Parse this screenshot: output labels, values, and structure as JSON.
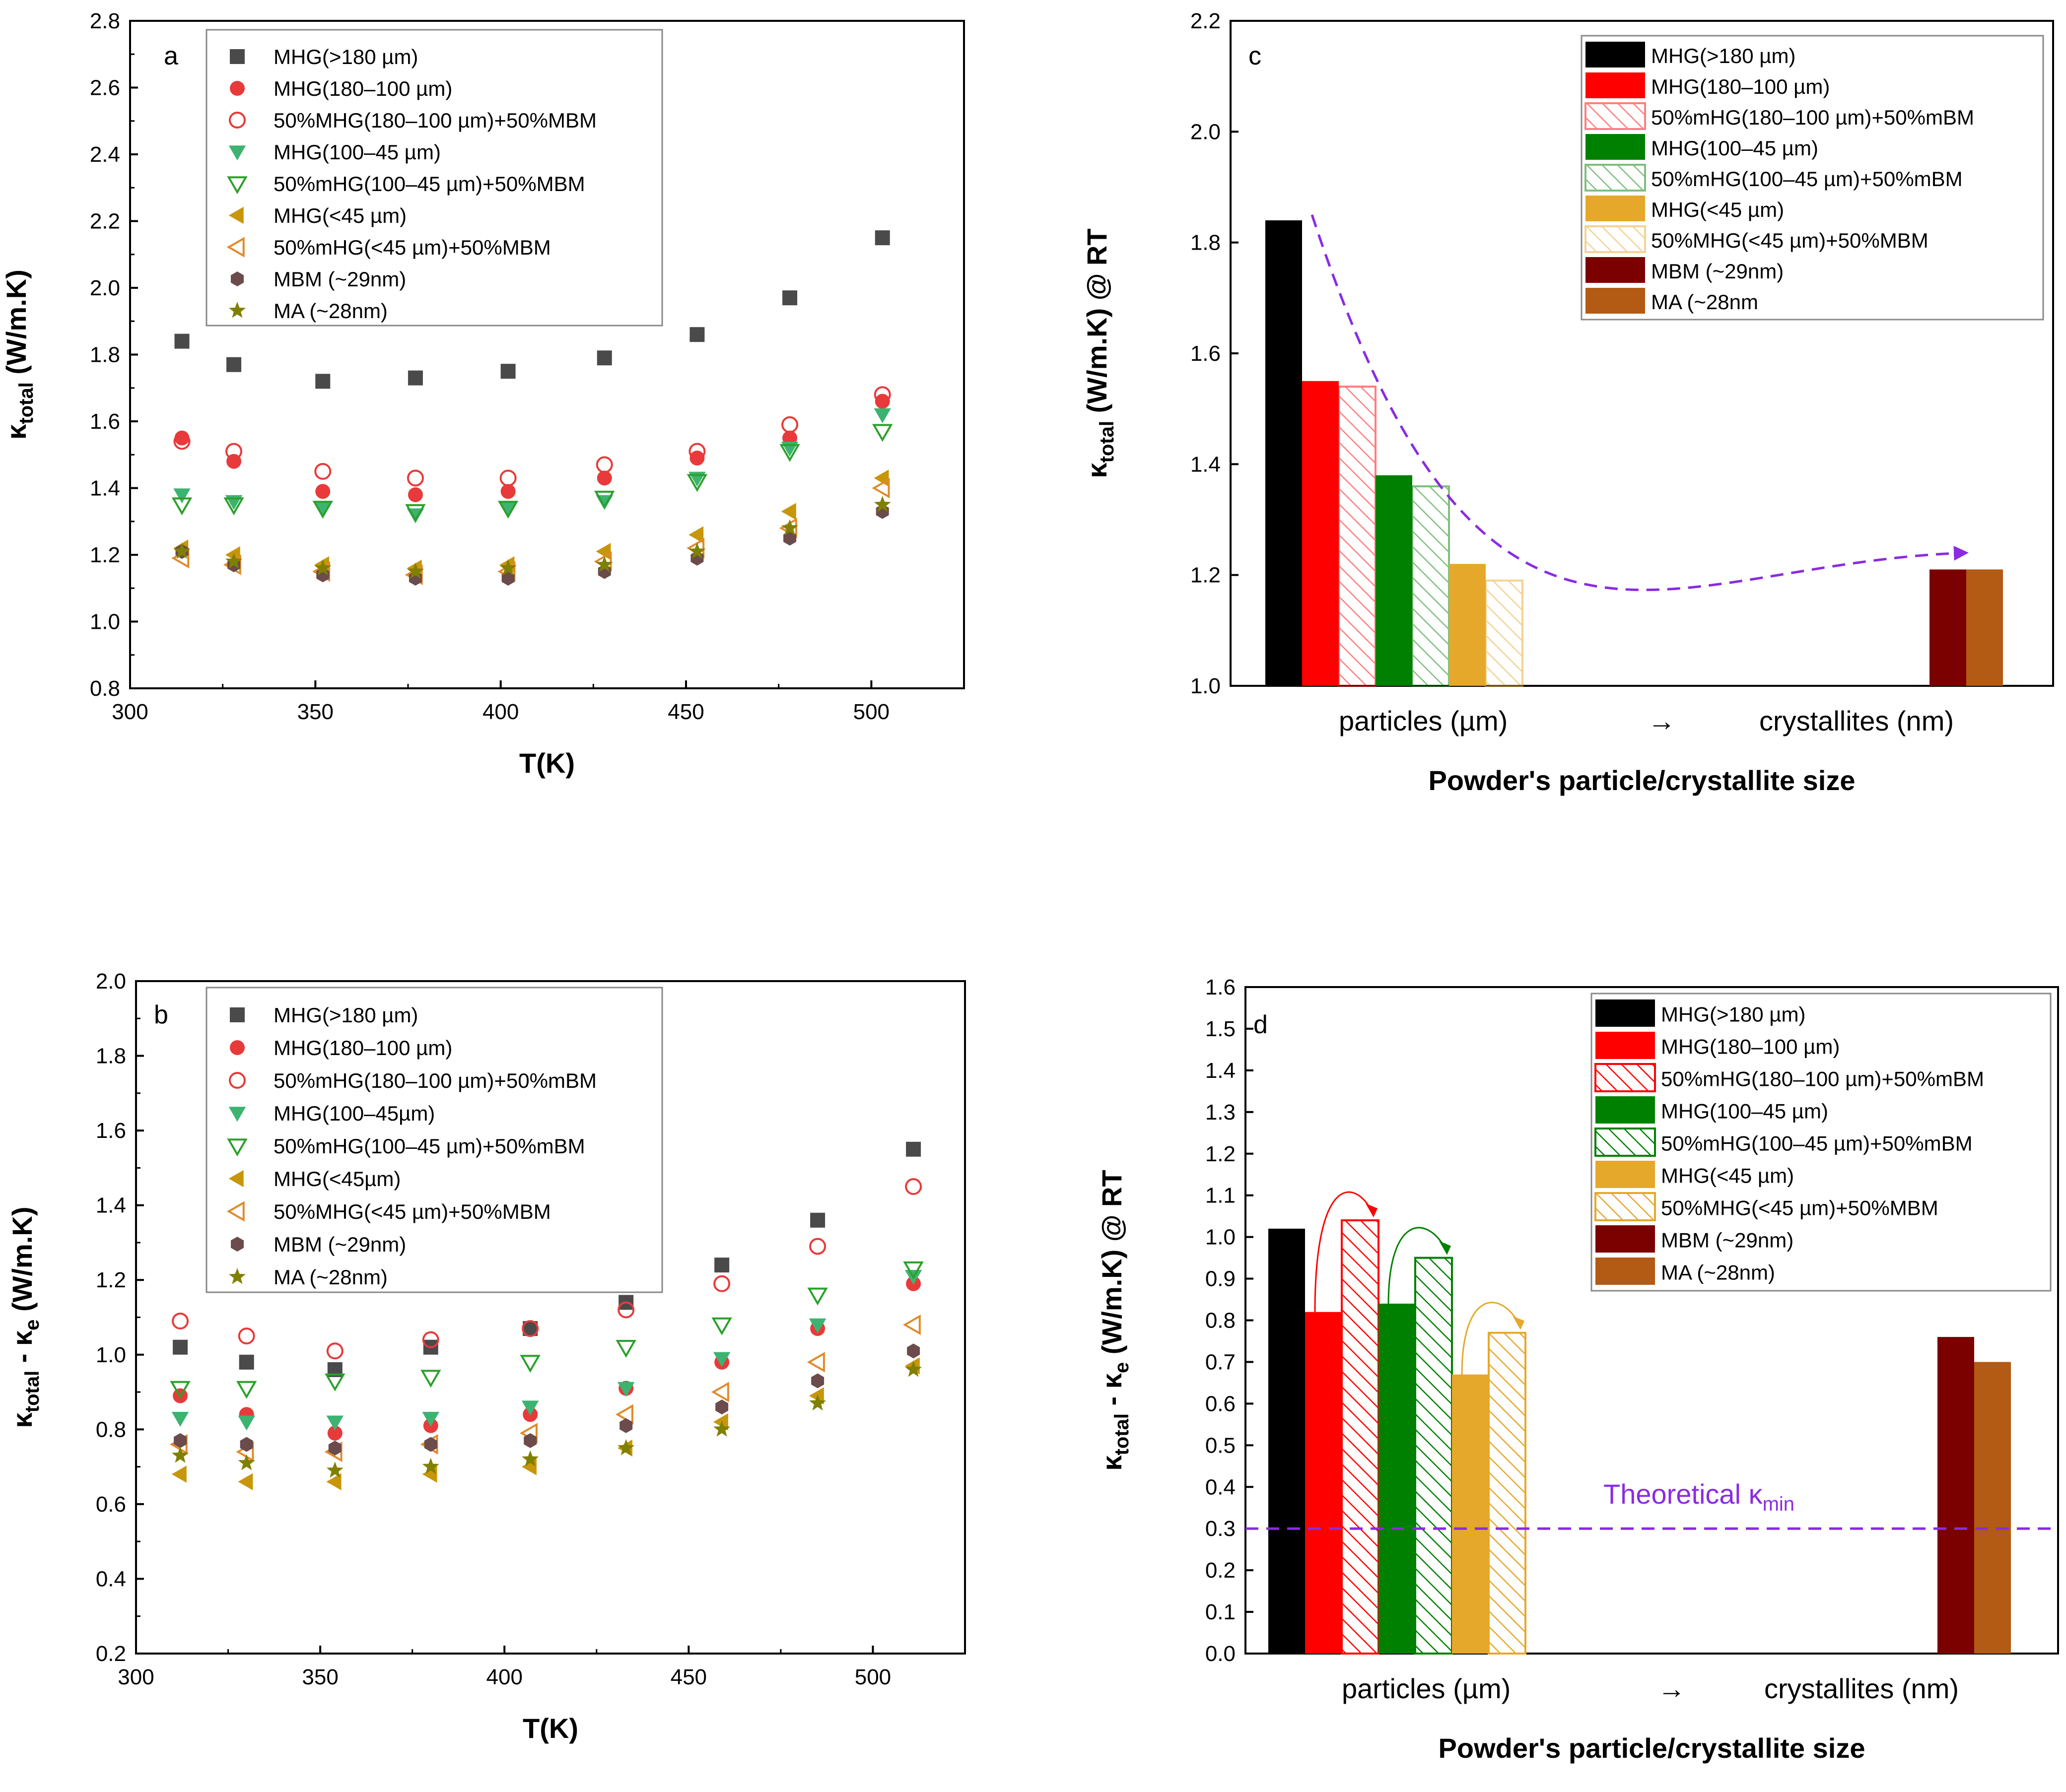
{
  "colors": {
    "black": "#000000",
    "red": "#ff0000",
    "green": "#008000",
    "markerGreen": "#3cb371",
    "gold": "#e6a82a",
    "darkgold": "#c8960a",
    "darkred": "#7b0000",
    "brown": "#b35a14",
    "maroon": "#6b4b4b",
    "olive": "#808000",
    "gray": "#4a4a4a",
    "purple": "#8a2be2"
  },
  "chart_data": [
    {
      "type": "scatter",
      "panel_label": "a",
      "xlabel": "T(K)",
      "ylabel_main": "κ",
      "ylabel_sub": "total",
      "ylabel_tail": " (W/m.K)",
      "xlim": [
        300,
        525
      ],
      "ylim": [
        0.8,
        2.8
      ],
      "xticks": [
        300,
        350,
        400,
        450,
        500
      ],
      "yticks": [
        0.8,
        1.0,
        1.2,
        1.4,
        1.6,
        1.8,
        2.0,
        2.2,
        2.4,
        2.6,
        2.8
      ],
      "ytick_labels": [
        "0.8",
        "1.0",
        "1.2",
        "1.4",
        "1.6",
        "1.8",
        "2.0",
        "2.2",
        "2.4",
        "2.6",
        "2.8"
      ],
      "x": [
        314,
        328,
        352,
        377,
        402,
        428,
        453,
        478,
        503
      ],
      "series": [
        {
          "name": "MHG(>180 µm)",
          "marker": "square",
          "color": "#4a4a4a",
          "values": [
            1.84,
            1.77,
            1.72,
            1.73,
            1.75,
            1.79,
            1.86,
            1.97,
            2.15
          ]
        },
        {
          "name": "MHG(180–100 µm)",
          "marker": "circle",
          "color": "#e83a3a",
          "values": [
            1.55,
            1.48,
            1.39,
            1.38,
            1.39,
            1.43,
            1.49,
            1.55,
            1.66
          ]
        },
        {
          "name": "50%MHG(180–100 µm)+50%MBM",
          "marker": "circle-open",
          "color": "#e83a3a",
          "values": [
            1.54,
            1.51,
            1.45,
            1.43,
            1.43,
            1.47,
            1.51,
            1.59,
            1.68
          ]
        },
        {
          "name": "MHG(100–45 µm)",
          "marker": "tri-down",
          "color": "#3cb371",
          "values": [
            1.38,
            1.36,
            1.34,
            1.32,
            1.34,
            1.36,
            1.43,
            1.52,
            1.62
          ]
        },
        {
          "name": "50%mHG(100–45 µm)+50%MBM",
          "marker": "tri-down-open",
          "color": "#2ca02c",
          "values": [
            1.35,
            1.35,
            1.34,
            1.33,
            1.34,
            1.37,
            1.42,
            1.51,
            1.57
          ]
        },
        {
          "name": "MHG(<45 µm)",
          "marker": "tri-left",
          "color": "#c8960a",
          "values": [
            1.22,
            1.2,
            1.17,
            1.16,
            1.17,
            1.21,
            1.26,
            1.33,
            1.43
          ]
        },
        {
          "name": "50%mHG(<45 µm)+50%MBM",
          "marker": "tri-left-open",
          "color": "#e08a2a",
          "values": [
            1.19,
            1.17,
            1.15,
            1.14,
            1.15,
            1.18,
            1.22,
            1.28,
            1.4
          ]
        },
        {
          "name": "MBM (~29nm)",
          "marker": "hexagon",
          "color": "#6b4b4b",
          "values": [
            1.21,
            1.17,
            1.14,
            1.13,
            1.13,
            1.15,
            1.19,
            1.25,
            1.33
          ]
        },
        {
          "name": "MA (~28nm)",
          "marker": "star",
          "color": "#808000",
          "values": [
            1.21,
            1.18,
            1.16,
            1.15,
            1.16,
            1.17,
            1.21,
            1.28,
            1.35
          ]
        }
      ]
    },
    {
      "type": "scatter",
      "panel_label": "b",
      "xlabel": "T(K)",
      "ylabel_main": "κ",
      "ylabel_sub": "total",
      "ylabel_mid": " - κ",
      "ylabel_sub2": "e",
      "ylabel_tail": " (W/m.K)",
      "xlim": [
        300,
        525
      ],
      "ylim": [
        0.2,
        2.0
      ],
      "xticks": [
        300,
        350,
        400,
        450,
        500
      ],
      "yticks": [
        0.2,
        0.4,
        0.6,
        0.8,
        1.0,
        1.2,
        1.4,
        1.6,
        1.8,
        2.0
      ],
      "ytick_labels": [
        "0.2",
        "0.4",
        "0.6",
        "0.8",
        "1.0",
        "1.2",
        "1.4",
        "1.6",
        "1.8",
        "2.0"
      ],
      "x": [
        312,
        330,
        354,
        380,
        407,
        433,
        459,
        485,
        511
      ],
      "series": [
        {
          "name": "MHG(>180 µm)",
          "marker": "square",
          "color": "#4a4a4a",
          "values": [
            1.02,
            0.98,
            0.96,
            1.02,
            1.07,
            1.14,
            1.24,
            1.36,
            1.55
          ]
        },
        {
          "name": "MHG(180–100 µm)",
          "marker": "circle",
          "color": "#e83a3a",
          "values": [
            0.89,
            0.84,
            0.79,
            0.81,
            0.84,
            0.91,
            0.98,
            1.07,
            1.19
          ]
        },
        {
          "name": "50%mHG(180–100 µm)+50%mBM",
          "marker": "circle-open",
          "color": "#e83a3a",
          "values": [
            1.09,
            1.05,
            1.01,
            1.04,
            1.07,
            1.12,
            1.19,
            1.29,
            1.45
          ]
        },
        {
          "name": "MHG(100–45µm)",
          "marker": "tri-down",
          "color": "#3cb371",
          "values": [
            0.83,
            0.82,
            0.82,
            0.83,
            0.86,
            0.91,
            0.99,
            1.08,
            1.21
          ]
        },
        {
          "name": "50%mHG(100–45 µm)+50%mBM",
          "marker": "tri-down-open",
          "color": "#2ca02c",
          "values": [
            0.91,
            0.91,
            0.93,
            0.94,
            0.98,
            1.02,
            1.08,
            1.16,
            1.23
          ]
        },
        {
          "name": "MHG(<45µm)",
          "marker": "tri-left",
          "color": "#c8960a",
          "values": [
            0.68,
            0.66,
            0.66,
            0.68,
            0.7,
            0.75,
            0.82,
            0.89,
            0.97
          ]
        },
        {
          "name": "50%MHG(<45 µm)+50%MBM",
          "marker": "tri-left-open",
          "color": "#e08a2a",
          "values": [
            0.76,
            0.74,
            0.74,
            0.76,
            0.79,
            0.84,
            0.9,
            0.98,
            1.08
          ]
        },
        {
          "name": "MBM (~29nm)",
          "marker": "hexagon",
          "color": "#6b4b4b",
          "values": [
            0.77,
            0.76,
            0.75,
            0.76,
            0.77,
            0.81,
            0.86,
            0.93,
            1.01
          ]
        },
        {
          "name": "MA (~28nm)",
          "marker": "star",
          "color": "#808000",
          "values": [
            0.73,
            0.71,
            0.69,
            0.7,
            0.72,
            0.75,
            0.8,
            0.87,
            0.96
          ]
        }
      ]
    },
    {
      "type": "bar",
      "panel_label": "c",
      "title": "",
      "xlabel": "Powder's particle/crystallite size",
      "xcat_left": "particles (µm)",
      "xcat_arrow": "→",
      "xcat_right": "crystallites (nm)",
      "ylabel_main": "κ",
      "ylabel_sub": "total",
      "ylabel_tail": " (W/m.K) @ RT",
      "ylim": [
        1.0,
        2.2
      ],
      "yticks": [
        1.0,
        1.2,
        1.4,
        1.6,
        1.8,
        2.0,
        2.2
      ],
      "ytick_labels": [
        "1.0",
        "1.2",
        "1.4",
        "1.6",
        "1.8",
        "2.0",
        "2.2"
      ],
      "categories": [
        "MHG(>180 µm)",
        "MHG(180–100 µm)",
        "50%mHG(180–100 µm)+50%mBM",
        "MHG(100–45 µm)",
        "50%mHG(100–45 µm)+50%mBM",
        "MHG(<45 µm)",
        "50%MHG(<45 µm)+50%MBM",
        "MBM (~29nm)",
        "MA (~28nm"
      ],
      "values": [
        1.84,
        1.55,
        1.54,
        1.38,
        1.36,
        1.22,
        1.19,
        1.21,
        1.21
      ],
      "bar_colors": [
        "#000000",
        "#ff0000",
        "#ff0000",
        "#008000",
        "#008000",
        "#e6a82a",
        "#e6a82a",
        "#7b0000",
        "#b35a14"
      ],
      "hatched": [
        false,
        false,
        true,
        false,
        true,
        false,
        true,
        false,
        false
      ],
      "hatch_opacity": 0.5,
      "trend": {
        "from_value": 1.85,
        "to_value": 1.24,
        "color": "#8a2be2"
      }
    },
    {
      "type": "bar",
      "panel_label": "d",
      "xlabel": "Powder's particle/crystallite size",
      "xcat_left": "particles (µm)",
      "xcat_arrow": "→",
      "xcat_right": "crystallites (nm)",
      "ylabel_main": "κ",
      "ylabel_sub": "total",
      "ylabel_mid": " - κ",
      "ylabel_sub2": "e",
      "ylabel_tail": " (W/m.K) @ RT",
      "ylim": [
        0.0,
        1.6
      ],
      "yticks": [
        0.0,
        0.1,
        0.2,
        0.3,
        0.4,
        0.5,
        0.6,
        0.7,
        0.8,
        0.9,
        1.0,
        1.1,
        1.2,
        1.3,
        1.4,
        1.5,
        1.6
      ],
      "ytick_labels": [
        "0.0",
        "0.1",
        "0.2",
        "0.3",
        "0.4",
        "0.5",
        "0.6",
        "0.7",
        "0.8",
        "0.9",
        "1.0",
        "1.1",
        "1.2",
        "1.3",
        "1.4",
        "1.5",
        "1.6"
      ],
      "categories": [
        "MHG(>180 µm)",
        "MHG(180–100 µm)",
        "50%mHG(180–100 µm)+50%mBM",
        "MHG(100–45 µm)",
        "50%mHG(100–45 µm)+50%mBM",
        "MHG(<45 µm)",
        "50%MHG(<45 µm)+50%MBM",
        "MBM (~29nm)",
        "MA (~28nm)"
      ],
      "values": [
        1.02,
        0.82,
        1.04,
        0.84,
        0.95,
        0.67,
        0.77,
        0.76,
        0.7
      ],
      "bar_colors": [
        "#000000",
        "#ff0000",
        "#ff0000",
        "#008000",
        "#008000",
        "#e6a82a",
        "#e6a82a",
        "#7b0000",
        "#b35a14"
      ],
      "hatched": [
        false,
        false,
        true,
        false,
        true,
        false,
        true,
        false,
        false
      ],
      "hatch_opacity": 1.0,
      "kmin_value": 0.3,
      "kmin_label": "Theoretical κ",
      "kmin_label_sub": "min",
      "kmin_color": "#8a2be2"
    }
  ]
}
